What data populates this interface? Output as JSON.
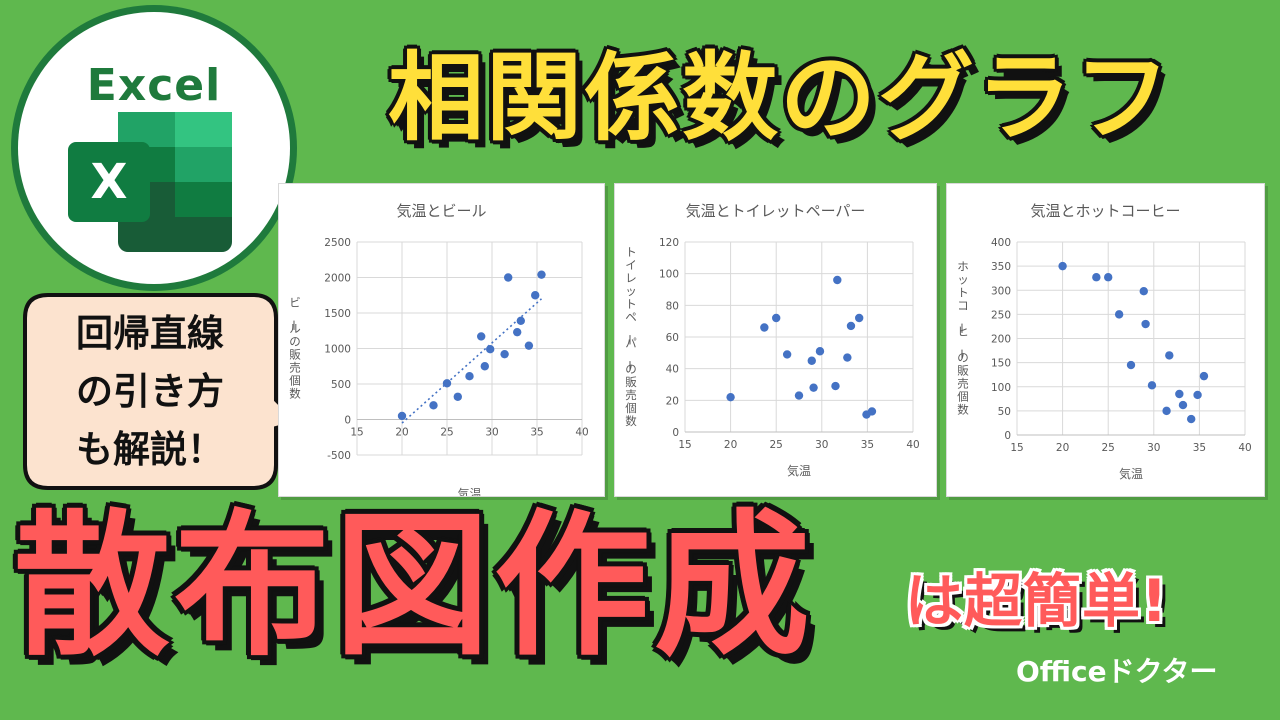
{
  "logo": {
    "word": "Excel",
    "letter": "X",
    "colors": {
      "dark": "#1f7a3c",
      "mid": "#21a366",
      "light": "#33c481",
      "deep": "#185c37"
    }
  },
  "title": "相関係数のグラフ",
  "callout": {
    "lines": [
      "回帰直線",
      "の引き方",
      "も解説！"
    ]
  },
  "headline": "散布図作成",
  "subhead": "は超簡単!",
  "brand": "Officeドクター",
  "colors": {
    "background": "#5fb84e",
    "title": "#ffdf3a",
    "headline": "#ff5a5a",
    "marker": "#4472c4",
    "callout_bg": "#fce3cf"
  },
  "chart_data": [
    {
      "type": "scatter",
      "title": "気温とビール",
      "xlabel": "気温",
      "ylabel": "ビールの販売個数",
      "xlim": [
        15,
        40
      ],
      "ylim": [
        -500,
        2500
      ],
      "xticks": [
        15,
        20,
        25,
        30,
        35,
        40
      ],
      "yticks": [
        -500,
        0,
        500,
        1000,
        1500,
        2000,
        2500
      ],
      "grid": true,
      "trendline": {
        "type": "linear",
        "style": "dotted",
        "x": [
          20,
          35.5
        ],
        "y": [
          -50,
          1700
        ]
      },
      "points": [
        {
          "x": 20,
          "y": 50
        },
        {
          "x": 23.5,
          "y": 200
        },
        {
          "x": 25,
          "y": 510
        },
        {
          "x": 26.2,
          "y": 320
        },
        {
          "x": 27.5,
          "y": 610
        },
        {
          "x": 28.8,
          "y": 1170
        },
        {
          "x": 29.2,
          "y": 750
        },
        {
          "x": 29.8,
          "y": 990
        },
        {
          "x": 31.4,
          "y": 920
        },
        {
          "x": 31.8,
          "y": 2000
        },
        {
          "x": 32.8,
          "y": 1230
        },
        {
          "x": 33.2,
          "y": 1390
        },
        {
          "x": 34.1,
          "y": 1040
        },
        {
          "x": 34.8,
          "y": 1750
        },
        {
          "x": 35.5,
          "y": 2040
        }
      ]
    },
    {
      "type": "scatter",
      "title": "気温とトイレットペーパー",
      "xlabel": "気温",
      "ylabel": "トイレットペーパーの販売個数",
      "xlim": [
        15,
        40
      ],
      "ylim": [
        0,
        120
      ],
      "xticks": [
        15,
        20,
        25,
        30,
        35,
        40
      ],
      "yticks": [
        0,
        20,
        40,
        60,
        80,
        100,
        120
      ],
      "grid": true,
      "points": [
        {
          "x": 20,
          "y": 22
        },
        {
          "x": 23.7,
          "y": 66
        },
        {
          "x": 25,
          "y": 72
        },
        {
          "x": 26.2,
          "y": 49
        },
        {
          "x": 27.5,
          "y": 23
        },
        {
          "x": 28.9,
          "y": 45
        },
        {
          "x": 29.1,
          "y": 28
        },
        {
          "x": 29.8,
          "y": 51
        },
        {
          "x": 31.5,
          "y": 29
        },
        {
          "x": 31.7,
          "y": 96
        },
        {
          "x": 32.8,
          "y": 47
        },
        {
          "x": 33.2,
          "y": 67
        },
        {
          "x": 34.1,
          "y": 72
        },
        {
          "x": 34.9,
          "y": 11
        },
        {
          "x": 35.5,
          "y": 13
        }
      ]
    },
    {
      "type": "scatter",
      "title": "気温とホットコーヒー",
      "xlabel": "気温",
      "ylabel": "ホットコーヒーの販売個数",
      "xlim": [
        15,
        40
      ],
      "ylim": [
        0,
        400
      ],
      "xticks": [
        15,
        20,
        25,
        30,
        35,
        40
      ],
      "yticks": [
        0,
        50,
        100,
        150,
        200,
        250,
        300,
        350,
        400
      ],
      "grid": true,
      "points": [
        {
          "x": 20,
          "y": 350
        },
        {
          "x": 23.7,
          "y": 327
        },
        {
          "x": 25,
          "y": 327
        },
        {
          "x": 26.2,
          "y": 250
        },
        {
          "x": 27.5,
          "y": 145
        },
        {
          "x": 28.9,
          "y": 298
        },
        {
          "x": 29.1,
          "y": 230
        },
        {
          "x": 29.8,
          "y": 103
        },
        {
          "x": 31.4,
          "y": 50
        },
        {
          "x": 31.7,
          "y": 165
        },
        {
          "x": 32.8,
          "y": 85
        },
        {
          "x": 33.2,
          "y": 62
        },
        {
          "x": 34.1,
          "y": 33
        },
        {
          "x": 34.8,
          "y": 83
        },
        {
          "x": 35.5,
          "y": 122
        }
      ]
    }
  ]
}
